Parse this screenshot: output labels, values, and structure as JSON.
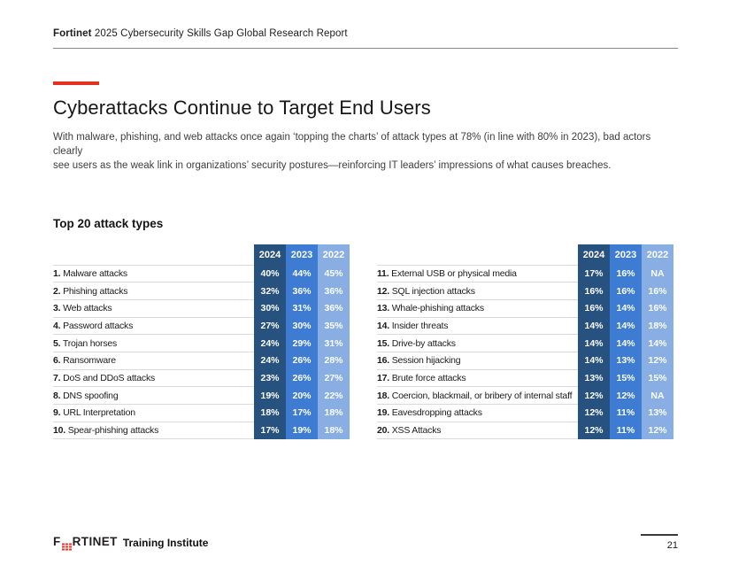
{
  "header": {
    "brand": "Fortinet",
    "title_rest": " 2025 Cybersecurity Skills Gap Global Research Report"
  },
  "hero": {
    "title": "Cyberattacks Continue to Target End Users",
    "intro_line1": "With malware, phishing, and web attacks once again ‘topping the charts’ of attack types at 78% (in line with 80% in 2023), bad actors clearly",
    "intro_line2": "see users as the weak link in organizations’ security postures—reinforcing IT leaders’ impressions of what causes breaches."
  },
  "section": {
    "heading": "Top 20 attack types"
  },
  "tables": {
    "years": [
      "2024",
      "2023",
      "2022"
    ],
    "colors": {
      "year_2024": "#27517F",
      "year_2023": "#3D7CD2",
      "year_2022": "#89AEE4",
      "accent_red": "#E23222",
      "logo_red": "#EE3124"
    },
    "left": {
      "rows": [
        {
          "rank": "1.",
          "label": "Malware attacks",
          "values": [
            "40%",
            "44%",
            "45%"
          ]
        },
        {
          "rank": "2.",
          "label": "Phishing attacks",
          "values": [
            "32%",
            "36%",
            "36%"
          ]
        },
        {
          "rank": "3.",
          "label": "Web attacks",
          "values": [
            "30%",
            "31%",
            "36%"
          ]
        },
        {
          "rank": "4.",
          "label": "Password attacks",
          "values": [
            "27%",
            "30%",
            "35%"
          ]
        },
        {
          "rank": "5.",
          "label": "Trojan horses",
          "values": [
            "24%",
            "29%",
            "31%"
          ]
        },
        {
          "rank": "6.",
          "label": "Ransomware",
          "values": [
            "24%",
            "26%",
            "28%"
          ]
        },
        {
          "rank": "7.",
          "label": "DoS and DDoS attacks",
          "values": [
            "23%",
            "26%",
            "27%"
          ]
        },
        {
          "rank": "8.",
          "label": "DNS spoofing",
          "values": [
            "19%",
            "20%",
            "22%"
          ]
        },
        {
          "rank": "9.",
          "label": "URL Interpretation",
          "values": [
            "18%",
            "17%",
            "18%"
          ]
        },
        {
          "rank": "10.",
          "label": "Spear-phishing attacks",
          "values": [
            "17%",
            "19%",
            "18%"
          ]
        }
      ]
    },
    "right": {
      "rows": [
        {
          "rank": "11.",
          "label": "External USB or physical media",
          "values": [
            "17%",
            "16%",
            "NA"
          ]
        },
        {
          "rank": "12.",
          "label": "SQL injection attacks",
          "values": [
            "16%",
            "16%",
            "16%"
          ]
        },
        {
          "rank": "13.",
          "label": "Whale-phishing attacks",
          "values": [
            "16%",
            "14%",
            "16%"
          ]
        },
        {
          "rank": "14.",
          "label": "Insider threats",
          "values": [
            "14%",
            "14%",
            "18%"
          ]
        },
        {
          "rank": "15.",
          "label": "Drive-by attacks",
          "values": [
            "14%",
            "14%",
            "14%"
          ]
        },
        {
          "rank": "16.",
          "label": "Session hijacking",
          "values": [
            "14%",
            "13%",
            "12%"
          ]
        },
        {
          "rank": "17.",
          "label": "Brute force attacks",
          "values": [
            "13%",
            "15%",
            "15%"
          ]
        },
        {
          "rank": "18.",
          "label": "Coercion, blackmail, or bribery of internal staff",
          "values": [
            "12%",
            "12%",
            "NA"
          ]
        },
        {
          "rank": "19.",
          "label": "Eavesdropping attacks",
          "values": [
            "12%",
            "11%",
            "13%"
          ]
        },
        {
          "rank": "20.",
          "label": "XSS Attacks",
          "values": [
            "12%",
            "11%",
            "12%"
          ]
        }
      ]
    }
  },
  "footer": {
    "logo_f": "F",
    "logo_rtinet": "RTINET",
    "brand_suffix": "Training Institute",
    "page_number": "21"
  }
}
